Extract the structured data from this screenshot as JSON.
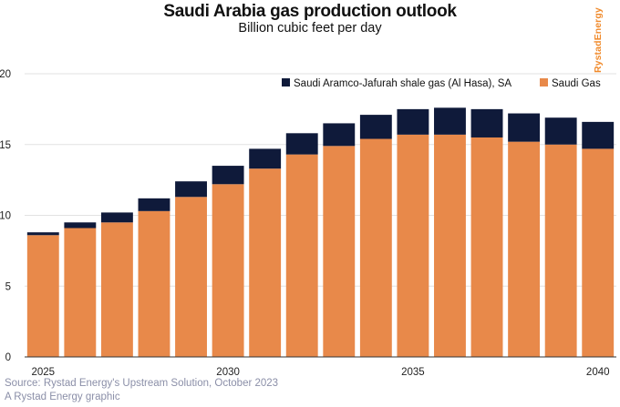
{
  "title": "Saudi Arabia gas production outlook",
  "subtitle": "Billion cubic feet per day",
  "brand": "RystadEnergy",
  "source_line1": "Source: Rystad Energy's Upstream Solution, October 2023",
  "source_line2": "A Rystad Energy graphic",
  "colors": {
    "saudi_gas": "#e8894a",
    "jafurah": "#0f1a3a",
    "grid": "#e2e2e2",
    "axis": "#333333"
  },
  "chart_data": {
    "type": "bar",
    "stacked": true,
    "x": [
      2025,
      2026,
      2027,
      2028,
      2029,
      2030,
      2031,
      2032,
      2033,
      2034,
      2035,
      2036,
      2037,
      2038,
      2039,
      2040
    ],
    "x_tick_labels": [
      "2025",
      "2030",
      "2035",
      "2040"
    ],
    "x_tick_values": [
      2025,
      2030,
      2035,
      2040
    ],
    "ylim": [
      0,
      20
    ],
    "y_ticks": [
      0,
      5,
      10,
      15,
      20
    ],
    "grid": "horizontal",
    "legend_position": "top-right",
    "series": [
      {
        "name": "Saudi Gas",
        "color": "#e8894a",
        "values": [
          8.6,
          9.1,
          9.5,
          10.3,
          11.3,
          12.2,
          13.3,
          14.3,
          14.9,
          15.4,
          15.7,
          15.7,
          15.5,
          15.2,
          15.0,
          14.7
        ]
      },
      {
        "name": "Saudi Aramco-Jafurah shale gas (Al Hasa), SA",
        "color": "#0f1a3a",
        "values": [
          0.2,
          0.4,
          0.7,
          0.9,
          1.1,
          1.3,
          1.4,
          1.5,
          1.6,
          1.7,
          1.8,
          1.9,
          2.0,
          2.0,
          1.9,
          1.9
        ]
      }
    ],
    "legend_order": [
      "Saudi Aramco-Jafurah shale gas (Al Hasa), SA",
      "Saudi Gas"
    ]
  }
}
